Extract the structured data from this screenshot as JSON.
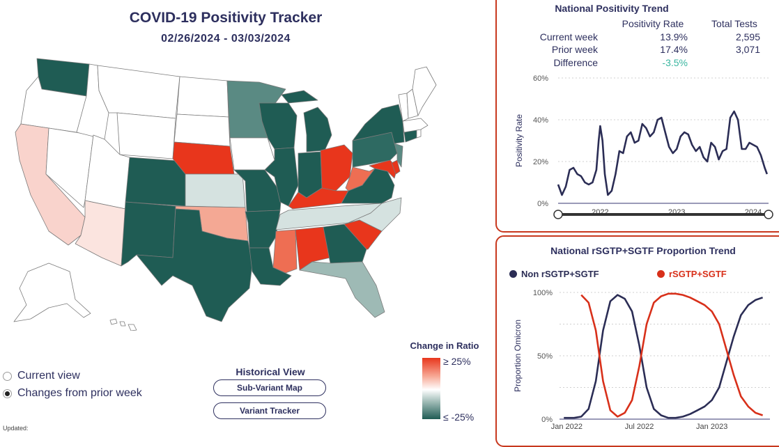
{
  "header": {
    "title": "COVID-19 Positivity Tracker",
    "date_range": "02/26/2024 - 03/03/2024"
  },
  "map": {
    "state_fills": {
      "WA": "#1f5c54",
      "OR": "#ffffff",
      "CA": "#f9d3cc",
      "NV": "#ffffff",
      "ID": "#ffffff",
      "MT": "#ffffff",
      "WY": "#ffffff",
      "UT": "#ffffff",
      "AZ": "#fbe4df",
      "NM": "#1f5c54",
      "CO": "#1f5c54",
      "ND": "#ffffff",
      "SD": "#ffffff",
      "NE": "#e8361c",
      "KS": "#d5e2e0",
      "OK": "#f4a894",
      "TX": "#1f5c54",
      "MN": "#5a8a83",
      "IA": "#ffffff",
      "MO": "#1f5c54",
      "AR": "#1f5c54",
      "LA": "#1f5c54",
      "WI": "#1f5c54",
      "IL": "#1f5c54",
      "MI": "#1f5c54",
      "IN": "#1f5c54",
      "OH": "#e8361c",
      "KY": "#e8361c",
      "TN": "#d5e2e0",
      "MS": "#ee6e53",
      "AL": "#e8361c",
      "GA": "#1f5c54",
      "FL": "#9ebab5",
      "SC": "#e8361c",
      "NC": "#d5e2e0",
      "VA": "#1f5c54",
      "WV": "#ee6e53",
      "MD": "#e8361c",
      "DE": "#e8361c",
      "NJ": "#5a8a83",
      "PA": "#2e6a62",
      "NY": "#1f5c54",
      "CT": "#1f5c54",
      "RI": "#ffffff",
      "MA": "#ffffff",
      "VT": "#ffffff",
      "NH": "#ffffff",
      "ME": "#ffffff",
      "AK": "#ffffff",
      "HI": "#ffffff"
    }
  },
  "view_toggle": {
    "options": [
      {
        "label": "Current view",
        "selected": false
      },
      {
        "label": "Changes from prior week",
        "selected": true
      }
    ]
  },
  "historical": {
    "title": "Historical View",
    "sub_variant_button": "Sub-Variant Map",
    "variant_tracker_button": "Variant Tracker"
  },
  "legend": {
    "title": "Change in Ratio",
    "high_label": "≥ 25%",
    "low_label": "≤ -25%",
    "high_color": "#e8361c",
    "mid_color": "#ffffff",
    "low_color": "#1f5c54"
  },
  "footer": {
    "updated_label": "Updated:"
  },
  "positivity_panel": {
    "title": "National Positivity Trend",
    "col_rate": "Positivity Rate",
    "col_tests": "Total Tests",
    "rows": [
      {
        "label": "Current week",
        "rate": "13.9%",
        "tests": "2,595"
      },
      {
        "label": "Prior week",
        "rate": "17.4%",
        "tests": "3,071"
      },
      {
        "label": "Difference",
        "rate": "-3.5%",
        "tests": ""
      }
    ],
    "difference_color": "#3ab6a0"
  },
  "sgtf_panel": {
    "title": "National rSGTP+SGTF Proportion Trend",
    "legend_non": "Non rSGTP+SGTF",
    "legend_yes": "rSGTP+SGTF",
    "non_color": "#2b2d55",
    "yes_color": "#d8301a"
  },
  "chart_data": [
    {
      "type": "line",
      "ylabel": "Positivity Rate",
      "ylim": [
        0,
        60
      ],
      "y_ticks": [
        "0%",
        "20%",
        "40%",
        "60%"
      ],
      "x_tick_labels": [
        "2022",
        "2023",
        "2024"
      ],
      "xlim": [
        2021.45,
        2024.2
      ],
      "line_color": "#2b2d55",
      "grid": true,
      "x": [
        2021.45,
        2021.5,
        2021.55,
        2021.6,
        2021.65,
        2021.7,
        2021.75,
        2021.8,
        2021.85,
        2021.9,
        2021.95,
        2021.98,
        2022.0,
        2022.03,
        2022.06,
        2022.1,
        2022.15,
        2022.2,
        2022.25,
        2022.3,
        2022.35,
        2022.4,
        2022.45,
        2022.5,
        2022.55,
        2022.6,
        2022.65,
        2022.7,
        2022.75,
        2022.8,
        2022.85,
        2022.9,
        2022.95,
        2023.0,
        2023.05,
        2023.1,
        2023.15,
        2023.2,
        2023.25,
        2023.3,
        2023.35,
        2023.4,
        2023.45,
        2023.5,
        2023.55,
        2023.6,
        2023.65,
        2023.7,
        2023.75,
        2023.8,
        2023.85,
        2023.9,
        2023.95,
        2024.0,
        2024.05,
        2024.1,
        2024.15,
        2024.18
      ],
      "values": [
        9,
        4,
        8,
        16,
        17,
        14,
        13,
        10,
        9,
        10,
        16,
        30,
        37,
        30,
        14,
        4,
        6,
        14,
        25,
        24,
        32,
        34,
        29,
        30,
        38,
        36,
        32,
        34,
        40,
        41,
        34,
        27,
        24,
        26,
        32,
        34,
        33,
        28,
        25,
        27,
        22,
        20,
        29,
        27,
        21,
        25,
        26,
        41,
        44,
        40,
        26,
        26,
        29,
        28,
        27,
        23,
        17,
        14
      ]
    },
    {
      "type": "line",
      "ylabel": "Proportion Omicron",
      "ylim": [
        0,
        100
      ],
      "y_ticks": [
        "0%",
        "50%",
        "100%"
      ],
      "x_tick_labels": [
        "Jan 2022",
        "Jul 2022",
        "Jan 2023"
      ],
      "xlim": [
        2021.95,
        2023.4
      ],
      "grid": true,
      "series": [
        {
          "name": "Non rSGTP+SGTF",
          "x": [
            2021.98,
            2022.05,
            2022.1,
            2022.15,
            2022.2,
            2022.25,
            2022.3,
            2022.35,
            2022.4,
            2022.45,
            2022.5,
            2022.55,
            2022.6,
            2022.65,
            2022.7,
            2022.75,
            2022.8,
            2022.85,
            2022.9,
            2022.95,
            2023.0,
            2023.05,
            2023.1,
            2023.15,
            2023.2,
            2023.25,
            2023.3,
            2023.35
          ],
          "values": [
            1,
            1,
            2,
            8,
            30,
            70,
            93,
            98,
            95,
            85,
            58,
            25,
            8,
            3,
            1,
            1,
            2,
            4,
            7,
            10,
            15,
            25,
            45,
            65,
            82,
            90,
            94,
            96
          ]
        },
        {
          "name": "rSGTP+SGTF",
          "x": [
            2022.1,
            2022.15,
            2022.2,
            2022.25,
            2022.3,
            2022.35,
            2022.4,
            2022.45,
            2022.5,
            2022.55,
            2022.6,
            2022.65,
            2022.7,
            2022.75,
            2022.8,
            2022.85,
            2022.9,
            2022.95,
            2023.0,
            2023.05,
            2023.1,
            2023.15,
            2023.2,
            2023.25,
            2023.3,
            2023.35
          ],
          "values": [
            98,
            92,
            70,
            30,
            7,
            2,
            5,
            15,
            42,
            75,
            92,
            97,
            99,
            99,
            98,
            96,
            93,
            90,
            85,
            75,
            55,
            35,
            18,
            10,
            5,
            3
          ]
        }
      ]
    }
  ]
}
